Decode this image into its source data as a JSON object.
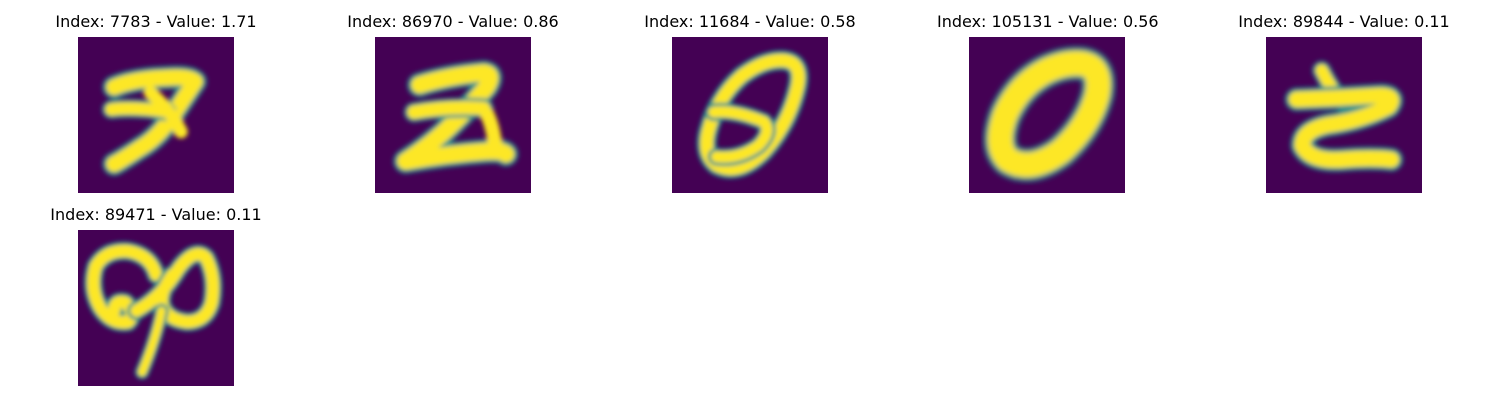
{
  "colors": {
    "background": "#440154",
    "foreground": "#fde725",
    "edge": "#21918c",
    "mid": "#5ec962",
    "page": "#ffffff"
  },
  "panels": [
    {
      "title": "Index: 7783 - Value: 1.71",
      "digit_shape": "handwritten-7-like-2"
    },
    {
      "title": "Index: 86970 - Value: 0.86",
      "digit_shape": "handwritten-2"
    },
    {
      "title": "Index: 11684 - Value: 0.58",
      "digit_shape": "handwritten-0-slanted-with-loop"
    },
    {
      "title": "Index: 105131 - Value: 0.56",
      "digit_shape": "handwritten-0-thick"
    },
    {
      "title": "Index: 89844 - Value: 0.11",
      "digit_shape": "handwritten-c-like"
    },
    {
      "title": "Index: 89471 - Value: 0.11",
      "digit_shape": "handwritten-loops-with-tail"
    }
  ]
}
